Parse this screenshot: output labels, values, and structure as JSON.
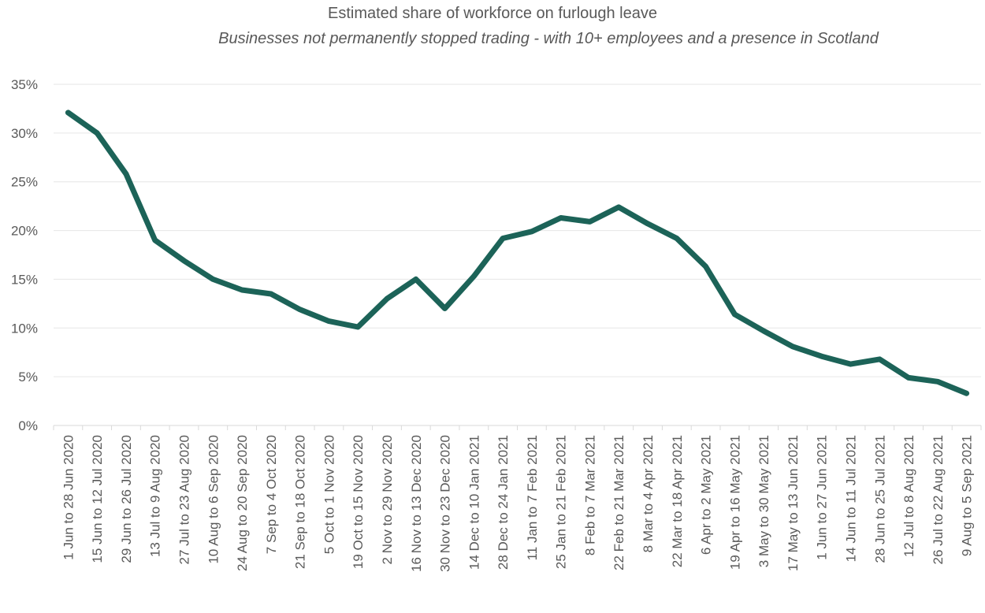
{
  "chart_data": {
    "type": "line",
    "title": "Estimated share of workforce on furlough leave",
    "subtitle": "Businesses not permanently stopped trading - with 10+ employees and a presence in Scotland",
    "xlabel": "",
    "ylabel": "",
    "ylim": [
      0,
      35
    ],
    "yticks": [
      "0%",
      "5%",
      "10%",
      "15%",
      "20%",
      "25%",
      "30%",
      "35%"
    ],
    "grid": true,
    "line_color": "#1c6358",
    "categories": [
      "1 Jun to 28 Jun 2020",
      "15 Jun to 12 Jul 2020",
      "29 Jun to 26 Jul 2020",
      "13 Jul to 9 Aug 2020",
      "27 Jul to 23 Aug 2020",
      "10 Aug to 6 Sep 2020",
      "24 Aug to 20 Sep 2020",
      "7 Sep to 4 Oct 2020",
      "21 Sep to 18 Oct 2020",
      "5 Oct to 1 Nov 2020",
      "19 Oct to 15 Nov 2020",
      "2 Nov to 29 Nov 2020",
      "16 Nov to 13 Dec 2020",
      "30 Nov to 23 Dec 2020",
      "14 Dec to 10 Jan 2021",
      "28 Dec to 24 Jan 2021",
      "11 Jan to 7 Feb 2021",
      "25 Jan to 21 Feb 2021",
      "8 Feb to 7 Mar 2021",
      "22 Feb to 21 Mar 2021",
      "8 Mar to 4 Apr 2021",
      "22 Mar to 18 Apr 2021",
      "6 Apr to 2 May 2021",
      "19 Apr to 16 May 2021",
      "3 May to 30 May 2021",
      "17 May to 13 Jun 2021",
      "1 Jun to 27 Jun 2021",
      "14 Jun to 11 Jul 2021",
      "28 Jun to 25 Jul 2021",
      "12 Jul to 8 Aug 2021",
      "26 Jul to 22 Aug 2021",
      "9 Aug to 5 Sep 2021"
    ],
    "series": [
      {
        "values": [
          32.1,
          30.0,
          25.8,
          19.0,
          16.9,
          15.0,
          13.9,
          13.5,
          11.9,
          10.7,
          10.1,
          13.0,
          15.0,
          12.0,
          15.3,
          19.2,
          19.9,
          21.3,
          20.9,
          22.4,
          20.7,
          19.2,
          16.3,
          11.4,
          9.7,
          8.1,
          7.1,
          6.3,
          6.8,
          4.9,
          4.5,
          3.3
        ]
      }
    ]
  }
}
